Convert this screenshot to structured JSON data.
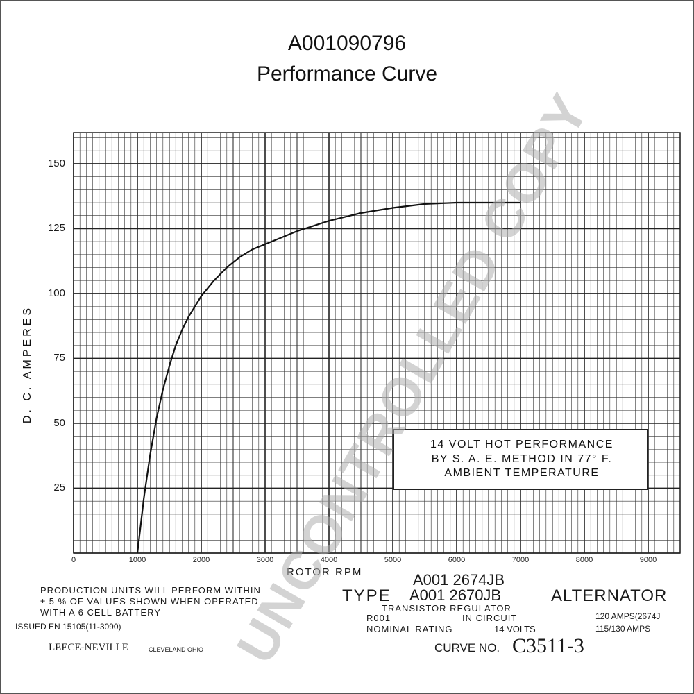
{
  "title_line1": "A001090796",
  "title_line2": "Performance Curve",
  "chart_data": {
    "type": "line",
    "xlabel": "ROTOR RPM",
    "ylabel": "D. C. AMPERES",
    "xlim": [
      0,
      9500
    ],
    "ylim": [
      0,
      162
    ],
    "x_ticks": [
      "0",
      "1000",
      "2000",
      "3000",
      "4000",
      "5000",
      "6000",
      "7000",
      "8000",
      "9000"
    ],
    "y_ticks": [
      "25",
      "50",
      "75",
      "100",
      "125",
      "150"
    ],
    "grid": true,
    "series": [
      {
        "x": [
          1000,
          1100,
          1200,
          1300,
          1400,
          1500,
          1600,
          1700,
          1800,
          1900,
          2000,
          2200,
          2400,
          2600,
          2800,
          3000,
          3200,
          3500,
          4000,
          4500,
          5000,
          5500,
          6000,
          6500,
          7000
        ],
        "y": [
          0,
          21,
          38,
          52,
          63,
          72,
          80,
          86,
          91,
          95,
          99,
          105,
          110,
          114,
          117,
          119,
          121,
          124,
          128,
          131,
          133,
          134.5,
          135,
          135,
          135
        ]
      }
    ]
  },
  "note": {
    "line1": "14 VOLT HOT PERFORMANCE",
    "line2": "BY S. A. E. METHOD IN 77° F.",
    "line3": "AMBIENT TEMPERATURE"
  },
  "footer": {
    "production_line1": "PRODUCTION UNITS WILL PERFORM WITHIN",
    "production_line2": "± 5 % OF VALUES SHOWN WHEN OPERATED",
    "production_line3": "WITH A 6 CELL BATTERY",
    "issued": "ISSUED EN 15105(11-3090)",
    "company": "LEECE-NEVILLE",
    "city": "CLEVELAND OHIO",
    "model1": "A001 2674JB",
    "type_label": "TYPE",
    "model2": "A001 2670JB",
    "alternator": "ALTERNATOR",
    "regulator": "TRANSISTOR REGULATOR",
    "reg_code": "R001",
    "in_circuit": "IN CIRCUIT",
    "nominal_rating": "NOMINAL RATING",
    "volts": "14 VOLTS",
    "amps1": "120 AMPS(2674J",
    "amps2": "115/130 AMPS",
    "curve_label": "CURVE NO.",
    "curve_no": "C3511-3"
  },
  "watermark": "UNCONTROLLED COPY"
}
